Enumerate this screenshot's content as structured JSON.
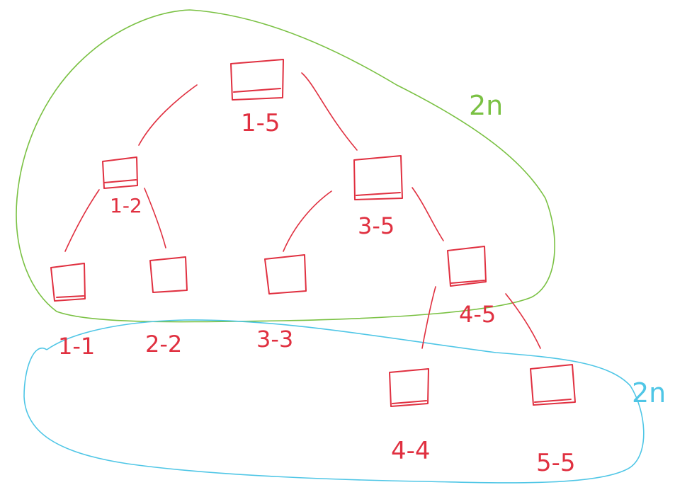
{
  "colors": {
    "tree": "#e03040",
    "upper_region": "#7ac143",
    "lower_region": "#4fc6e6",
    "background": "#ffffff"
  },
  "region_labels": {
    "upper": "2n",
    "lower": "2n"
  },
  "nodes": [
    {
      "id": "n-1-5",
      "label": "1-5"
    },
    {
      "id": "n-1-2",
      "label": "1-2"
    },
    {
      "id": "n-3-5",
      "label": "3-5"
    },
    {
      "id": "n-1-1",
      "label": "1-1"
    },
    {
      "id": "n-2-2",
      "label": "2-2"
    },
    {
      "id": "n-3-3",
      "label": "3-3"
    },
    {
      "id": "n-4-5",
      "label": "4-5"
    },
    {
      "id": "n-4-4",
      "label": "4-4"
    },
    {
      "id": "n-5-5",
      "label": "5-5"
    }
  ],
  "edges": [
    {
      "from": "n-1-5",
      "to": "n-1-2"
    },
    {
      "from": "n-1-5",
      "to": "n-3-5"
    },
    {
      "from": "n-1-2",
      "to": "n-1-1"
    },
    {
      "from": "n-1-2",
      "to": "n-2-2"
    },
    {
      "from": "n-3-5",
      "to": "n-3-3"
    },
    {
      "from": "n-3-5",
      "to": "n-4-5"
    },
    {
      "from": "n-4-5",
      "to": "n-4-4"
    },
    {
      "from": "n-4-5",
      "to": "n-5-5"
    }
  ]
}
